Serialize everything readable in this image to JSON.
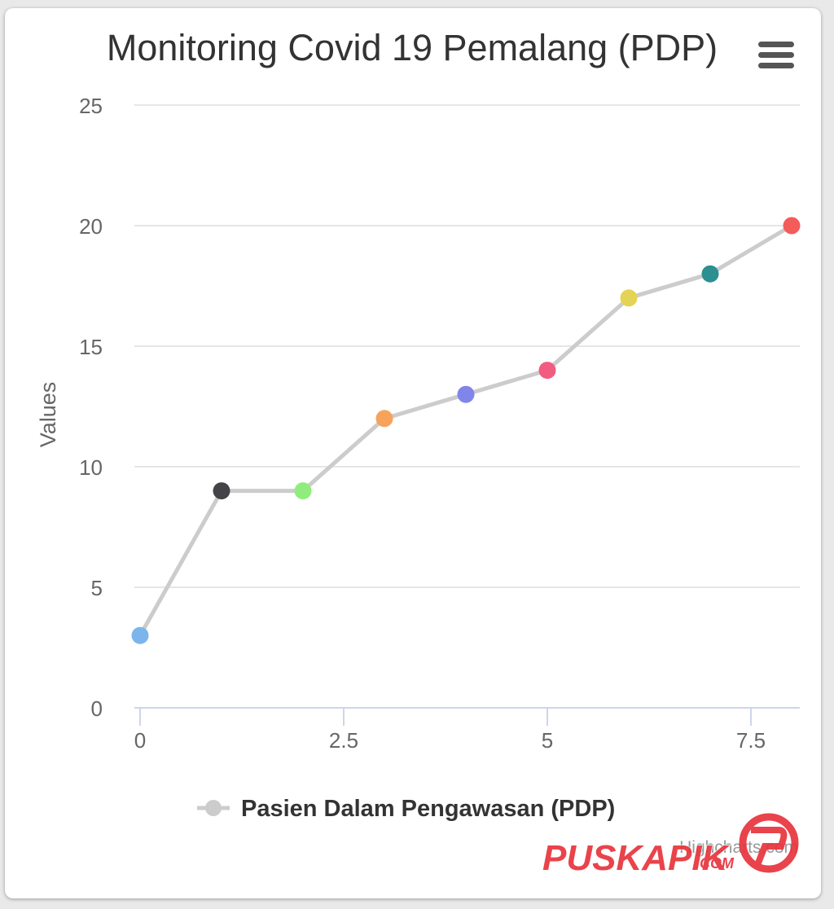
{
  "chart_data": {
    "type": "line",
    "title": "Monitoring Covid 19 Pemalang (PDP)",
    "xlabel": "",
    "ylabel": "Values",
    "xlim": [
      0,
      8
    ],
    "ylim": [
      0,
      25
    ],
    "x_ticks": [
      "0",
      "2.5",
      "5",
      "7.5"
    ],
    "x_tick_values": [
      0,
      2.5,
      5,
      7.5
    ],
    "y_ticks": [
      "0",
      "5",
      "10",
      "15",
      "20",
      "25"
    ],
    "y_tick_values": [
      0,
      5,
      10,
      15,
      20,
      25
    ],
    "grid": true,
    "legend_position": "bottom-center",
    "series": [
      {
        "name": "Pasien Dalam Pengawasan (PDP)",
        "line_color": "#cccccc",
        "x": [
          0,
          1,
          2,
          3,
          4,
          5,
          6,
          7,
          8
        ],
        "values": [
          3,
          9,
          9,
          12,
          13,
          14,
          17,
          18,
          20
        ],
        "point_colors": [
          "#7cb5ec",
          "#434348",
          "#90ed7d",
          "#f7a35c",
          "#8085e9",
          "#f15c80",
          "#e4d354",
          "#2b908f",
          "#f45b5b"
        ]
      }
    ]
  },
  "menu": {
    "icon": "hamburger-menu-icon"
  },
  "credits": {
    "text": "Highcharts.com"
  },
  "watermark": {
    "text": "PUSKAPIK",
    "suffix": ".COM",
    "color": "#e8343c"
  },
  "colors": {
    "grid": "#e6e6e6",
    "axis": "#ccd6eb",
    "text": "#333333",
    "muted": "#666666"
  }
}
